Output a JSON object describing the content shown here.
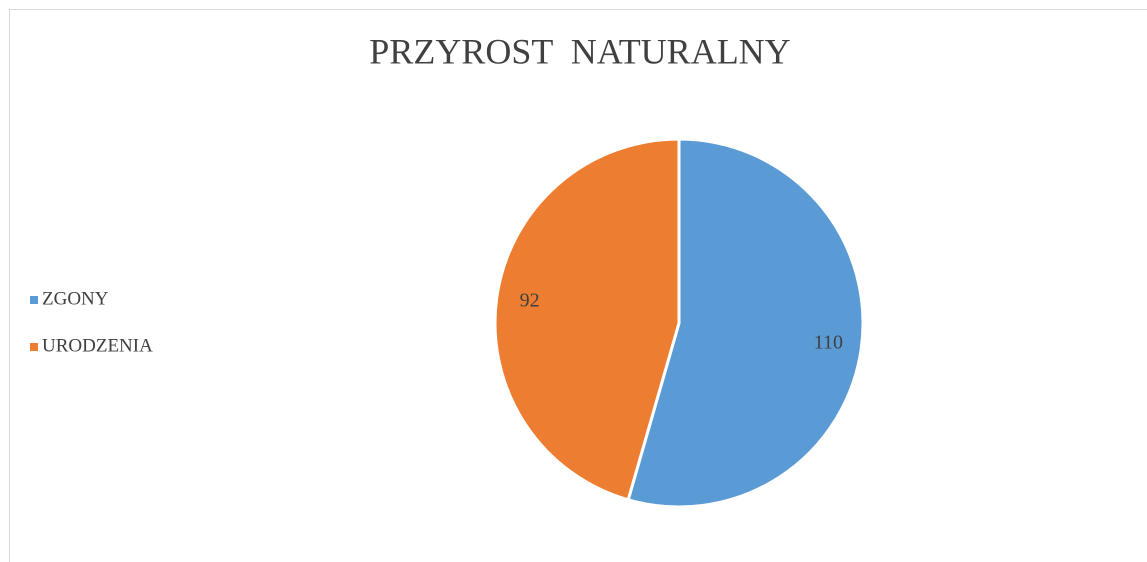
{
  "chart_data": {
    "type": "pie",
    "title": "PRZYROST  NATURALNY",
    "categories": [
      "ZGONY",
      "URODZENIA"
    ],
    "values": [
      110,
      92
    ],
    "colors": [
      "#5b9bd5",
      "#ed7d31"
    ],
    "legend": "left"
  }
}
